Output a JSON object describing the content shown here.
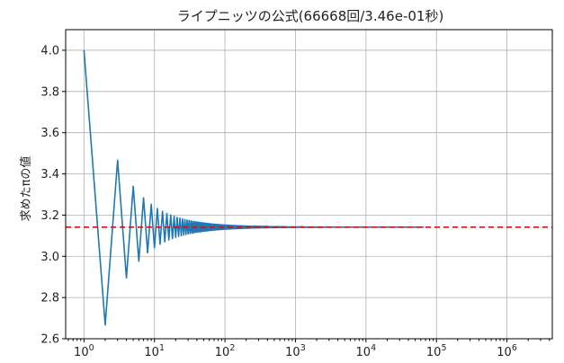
{
  "chart_data": {
    "type": "line",
    "title": "ライプニッツの公式(66668回/3.46e-01秒)",
    "xlabel": "",
    "ylabel": "求めたπの値",
    "x_scale": "log",
    "xlim": [
      0.55,
      4400000
    ],
    "ylim": [
      2.6,
      4.1
    ],
    "x_ticks": [
      {
        "base": "10",
        "exp": "0"
      },
      {
        "base": "10",
        "exp": "1"
      },
      {
        "base": "10",
        "exp": "2"
      },
      {
        "base": "10",
        "exp": "3"
      },
      {
        "base": "10",
        "exp": "4"
      },
      {
        "base": "10",
        "exp": "5"
      },
      {
        "base": "10",
        "exp": "6"
      }
    ],
    "y_ticks": [
      "2.6",
      "2.8",
      "3.0",
      "3.2",
      "3.4",
      "3.6",
      "3.8",
      "4.0"
    ],
    "grid": true,
    "series": [
      {
        "type": "line",
        "color": "#1f77b4",
        "n_terms": 66668,
        "x": [
          1,
          2,
          3,
          4,
          5,
          6,
          7,
          8,
          9,
          10,
          11,
          12,
          13,
          14,
          15,
          16,
          17,
          18,
          19,
          20,
          30,
          50,
          100,
          1000,
          10000,
          66668
        ],
        "y": [
          4.0,
          2.667,
          3.467,
          2.895,
          3.34,
          2.976,
          3.284,
          3.017,
          3.252,
          3.042,
          3.232,
          3.058,
          3.218,
          3.071,
          3.208,
          3.079,
          3.2,
          3.086,
          3.194,
          3.092,
          3.108,
          3.122,
          3.132,
          3.141,
          3.1415,
          3.1416
        ]
      },
      {
        "type": "hline",
        "color": "#ff0000",
        "style": "dashed",
        "y": 3.14159
      }
    ]
  }
}
